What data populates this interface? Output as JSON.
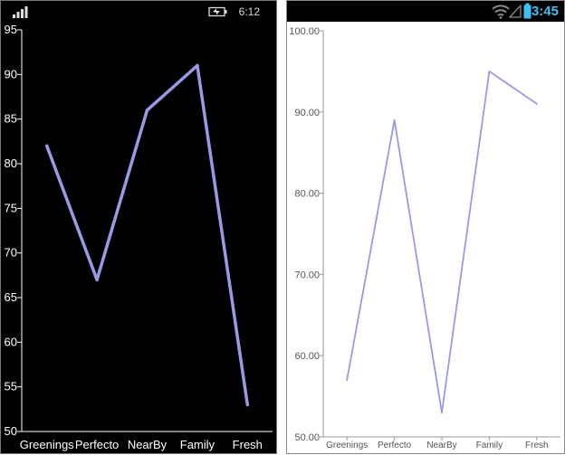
{
  "wp_status": {
    "time": "6:12",
    "signal_icon": "signal-bars-icon",
    "battery_icon": "battery-charging-icon"
  },
  "android_status": {
    "time": "3:45",
    "wifi_icon": "wifi-icon",
    "signal_icon": "cell-signal-icon",
    "battery_icon": "battery-icon"
  },
  "colors": {
    "series_line": "#9999e6",
    "wp_background": "#000000",
    "android_background": "#ffffff",
    "android_accent": "#3fc0f0"
  },
  "chart_data": [
    {
      "type": "line",
      "platform": "windows-phone",
      "categories": [
        "Greenings",
        "Perfecto",
        "NearBy",
        "Family",
        "Fresh"
      ],
      "values": [
        82,
        67,
        86,
        91,
        53
      ],
      "ylim": [
        50,
        95
      ],
      "yticks": [
        "50",
        "55",
        "60",
        "65",
        "70",
        "75",
        "80",
        "85",
        "90",
        "95"
      ],
      "grid": false
    },
    {
      "type": "line",
      "platform": "android",
      "categories": [
        "Greenings",
        "Perfecto",
        "NearBy",
        "Family",
        "Fresh"
      ],
      "values": [
        57,
        89,
        53,
        95,
        91
      ],
      "ylim": [
        50,
        100
      ],
      "yticks": [
        "50.00",
        "60.00",
        "70.00",
        "80.00",
        "90.00",
        "100.00"
      ],
      "grid": false
    }
  ]
}
